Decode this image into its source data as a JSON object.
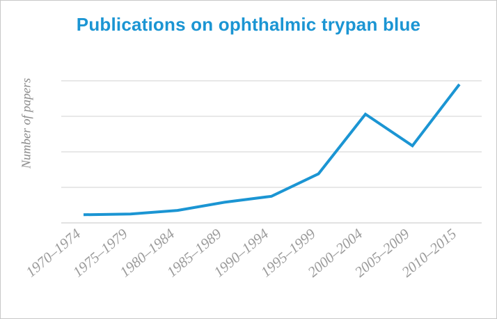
{
  "chart_data": {
    "type": "line",
    "title": "Publications on ophthalmic trypan blue",
    "xlabel": "",
    "ylabel": "Number of papers",
    "categories": [
      "1970–1974",
      "1975–1979",
      "1980–1984",
      "1985–1989",
      "1990–1994",
      "1995–1999",
      "2000–2004",
      "2005–2009",
      "2010–2015"
    ],
    "series": [
      {
        "values": [
          2.3,
          2.5,
          3.5,
          5.8,
          7.5,
          13.8,
          30.6,
          21.7,
          39.0
        ]
      }
    ],
    "ylim": [
      0,
      40
    ],
    "yticks": [
      10,
      20,
      30,
      40
    ],
    "ytick_labels_shown": false,
    "grid": true,
    "legend": "none",
    "colors": {
      "line": "#1b95d3",
      "grid": "#d9d9d9",
      "title": "#1b95d3",
      "labels": "#9a9a9a"
    }
  }
}
